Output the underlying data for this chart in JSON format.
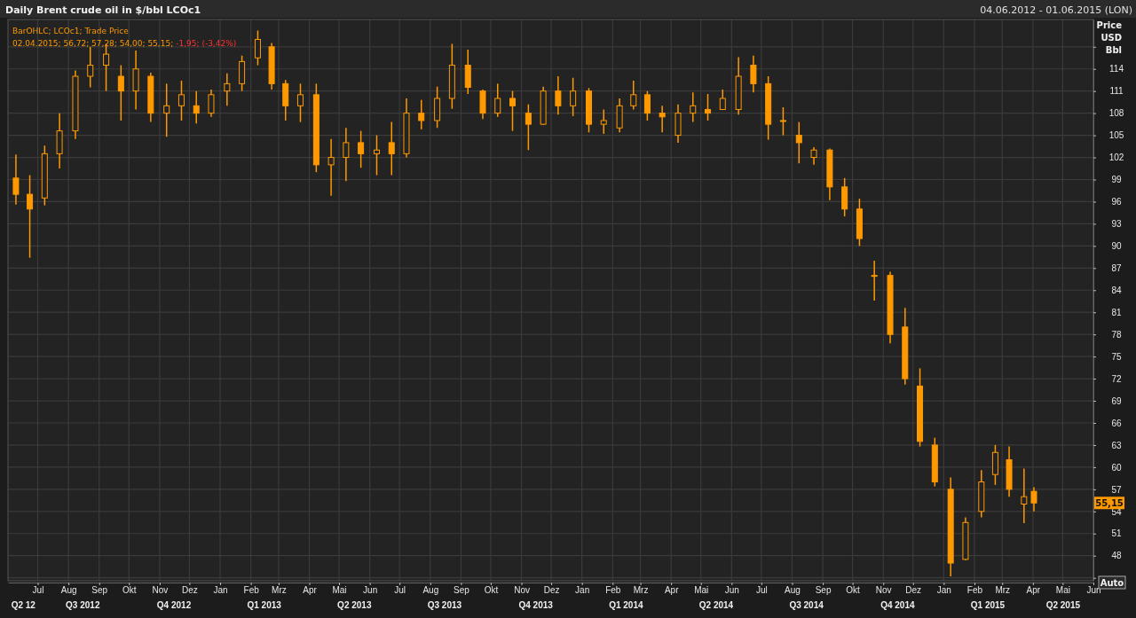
{
  "chart_data": {
    "type": "candlestick",
    "title": "Daily Brent crude oil in $/bbl LCOc1",
    "subtitle": "04.06.2012 - 01.06.2015 (LON)",
    "ylabel": "Price USD Bbl",
    "x": [
      "2012-06-09",
      "2012-06-23",
      "2012-07-08",
      "2012-07-23",
      "2012-08-08",
      "2012-08-23",
      "2012-09-08",
      "2012-09-23",
      "2012-10-08",
      "2012-10-23",
      "2012-11-08",
      "2012-11-23",
      "2012-12-08",
      "2012-12-23",
      "2013-01-08",
      "2013-01-23",
      "2013-02-08",
      "2013-02-22",
      "2013-03-08",
      "2013-03-23",
      "2013-04-08",
      "2013-04-23",
      "2013-05-08",
      "2013-05-23",
      "2013-06-08",
      "2013-06-23",
      "2013-07-08",
      "2013-07-23",
      "2013-08-08",
      "2013-08-23",
      "2013-09-08",
      "2013-09-23",
      "2013-10-08",
      "2013-10-23",
      "2013-11-08",
      "2013-11-23",
      "2013-12-08",
      "2013-12-23",
      "2014-01-08",
      "2014-01-23",
      "2014-02-08",
      "2014-02-22",
      "2014-03-08",
      "2014-03-23",
      "2014-04-08",
      "2014-04-23",
      "2014-05-08",
      "2014-05-23",
      "2014-06-08",
      "2014-06-23",
      "2014-07-08",
      "2014-07-23",
      "2014-08-08",
      "2014-08-23",
      "2014-09-08",
      "2014-09-23",
      "2014-10-08",
      "2014-10-23",
      "2014-11-08",
      "2014-11-23",
      "2014-12-08",
      "2014-12-23",
      "2015-01-08",
      "2015-01-23",
      "2015-02-08",
      "2015-02-22",
      "2015-03-08",
      "2015-03-23",
      "2015-04-02"
    ],
    "ohlc": [
      [
        99.2,
        102.4,
        95.6,
        97
      ],
      [
        97,
        99.6,
        88.4,
        95
      ],
      [
        96.5,
        103.6,
        95.5,
        102.5
      ],
      [
        102.5,
        108,
        100.5,
        105.6
      ],
      [
        105.6,
        113.8,
        104.5,
        113
      ],
      [
        113,
        117,
        111.5,
        114.5
      ],
      [
        114.5,
        117.4,
        111,
        116
      ],
      [
        113,
        114.5,
        107,
        111
      ],
      [
        111,
        116.5,
        108.5,
        114
      ],
      [
        113,
        113.5,
        106.8,
        108
      ],
      [
        108,
        112,
        104.8,
        109
      ],
      [
        109,
        112.4,
        107,
        110.5
      ],
      [
        109,
        111,
        106.6,
        108
      ],
      [
        108,
        111.2,
        107.5,
        110.5
      ],
      [
        111,
        113.4,
        109,
        112
      ],
      [
        112,
        115.8,
        111,
        115
      ],
      [
        115.5,
        119.2,
        114.5,
        118
      ],
      [
        117,
        117.5,
        111.2,
        112
      ],
      [
        112,
        112.5,
        107,
        109
      ],
      [
        109,
        112,
        106.8,
        110.5
      ],
      [
        110.5,
        112,
        100,
        101
      ],
      [
        101,
        104.5,
        96.8,
        102
      ],
      [
        102,
        106,
        98.8,
        104
      ],
      [
        104,
        105.6,
        100.6,
        102.5
      ],
      [
        102.5,
        105,
        99.6,
        103
      ],
      [
        104,
        106.8,
        99.6,
        102.5
      ],
      [
        102.5,
        110,
        102,
        108
      ],
      [
        108,
        109.8,
        105.8,
        107
      ],
      [
        107,
        111.6,
        106,
        110
      ],
      [
        110,
        117.4,
        108.6,
        114.5
      ],
      [
        114.5,
        116.6,
        110.6,
        111.5
      ],
      [
        111,
        111.2,
        107.2,
        108
      ],
      [
        108,
        112,
        107.5,
        110
      ],
      [
        110,
        111,
        105.6,
        109
      ],
      [
        108,
        109.2,
        103,
        106.5
      ],
      [
        106.5,
        111.6,
        106.4,
        111
      ],
      [
        111,
        113,
        107.8,
        109
      ],
      [
        109,
        112.8,
        107.6,
        111
      ],
      [
        111,
        111.4,
        105.4,
        106.5
      ],
      [
        106.5,
        108.5,
        105.2,
        107
      ],
      [
        106,
        110,
        105.4,
        109
      ],
      [
        109,
        112.4,
        108.5,
        110.5
      ],
      [
        110.5,
        111,
        107,
        108
      ],
      [
        108,
        109,
        105.4,
        107.5
      ],
      [
        105,
        109.2,
        104,
        108
      ],
      [
        108,
        110.8,
        106.8,
        109
      ],
      [
        108.5,
        110.6,
        107,
        108
      ],
      [
        108.5,
        111.2,
        108.5,
        110
      ],
      [
        108.5,
        115.6,
        107.8,
        113
      ],
      [
        114.5,
        115.8,
        110.8,
        112
      ],
      [
        112,
        113,
        104.4,
        106.5
      ],
      [
        107,
        108.8,
        105,
        107
      ],
      [
        105,
        106.8,
        101.2,
        104
      ],
      [
        102,
        103.4,
        101,
        103
      ],
      [
        103,
        103.2,
        96.2,
        98
      ],
      [
        98,
        99.2,
        94,
        95
      ],
      [
        95,
        96.4,
        90,
        91
      ],
      [
        86,
        88,
        82.6,
        86
      ],
      [
        86,
        86.5,
        76.8,
        78
      ],
      [
        79,
        81.6,
        71.2,
        72
      ],
      [
        71,
        73.4,
        62.8,
        63.5
      ],
      [
        63,
        64,
        57.4,
        58
      ],
      [
        57,
        58.6,
        45.2,
        47
      ],
      [
        47.5,
        53.2,
        47.4,
        52.5
      ],
      [
        54,
        59.6,
        53.2,
        58
      ],
      [
        59,
        63,
        57.6,
        62
      ],
      [
        61,
        62.8,
        56,
        57
      ],
      [
        55,
        59.8,
        52.4,
        56
      ],
      [
        56.72,
        57.28,
        54,
        55.15
      ]
    ],
    "color": "#ff9900",
    "xlim": [
      "2012-06-01",
      "2015-06-01"
    ],
    "xticks": [
      {
        "value": "2012-07-01",
        "label": "Jul"
      },
      {
        "value": "2012-08-01",
        "label": "Aug"
      },
      {
        "value": "2012-09-01",
        "label": "Sep"
      },
      {
        "value": "2012-10-01",
        "label": "Okt"
      },
      {
        "value": "2012-11-01",
        "label": "Nov"
      },
      {
        "value": "2012-12-01",
        "label": "Dez"
      },
      {
        "value": "2013-01-01",
        "label": "Jan"
      },
      {
        "value": "2013-02-01",
        "label": "Feb"
      },
      {
        "value": "2013-03-01",
        "label": "Mrz"
      },
      {
        "value": "2013-04-01",
        "label": "Apr"
      },
      {
        "value": "2013-05-01",
        "label": "Mai"
      },
      {
        "value": "2013-06-01",
        "label": "Jun"
      },
      {
        "value": "2013-07-01",
        "label": "Jul"
      },
      {
        "value": "2013-08-01",
        "label": "Aug"
      },
      {
        "value": "2013-09-01",
        "label": "Sep"
      },
      {
        "value": "2013-10-01",
        "label": "Okt"
      },
      {
        "value": "2013-11-01",
        "label": "Nov"
      },
      {
        "value": "2013-12-01",
        "label": "Dez"
      },
      {
        "value": "2014-01-01",
        "label": "Jan"
      },
      {
        "value": "2014-02-01",
        "label": "Feb"
      },
      {
        "value": "2014-03-01",
        "label": "Mrz"
      },
      {
        "value": "2014-04-01",
        "label": "Apr"
      },
      {
        "value": "2014-05-01",
        "label": "Mai"
      },
      {
        "value": "2014-06-01",
        "label": "Jun"
      },
      {
        "value": "2014-07-01",
        "label": "Jul"
      },
      {
        "value": "2014-08-01",
        "label": "Aug"
      },
      {
        "value": "2014-09-01",
        "label": "Sep"
      },
      {
        "value": "2014-10-01",
        "label": "Okt"
      },
      {
        "value": "2014-11-01",
        "label": "Nov"
      },
      {
        "value": "2014-12-01",
        "label": "Dez"
      },
      {
        "value": "2015-01-01",
        "label": "Jan"
      },
      {
        "value": "2015-02-01",
        "label": "Feb"
      },
      {
        "value": "2015-03-01",
        "label": "Mrz"
      },
      {
        "value": "2015-04-01",
        "label": "Apr"
      },
      {
        "value": "2015-05-01",
        "label": "Mai"
      },
      {
        "value": "2015-06-01",
        "label": "Jun"
      }
    ],
    "x2lim": [
      "2012-06-01",
      "2015-06-01"
    ],
    "x2ticks": [
      {
        "value": "2012-06-16",
        "label": "Q2 12"
      },
      {
        "value": "2012-08-15",
        "label": "Q3 2012"
      },
      {
        "value": "2012-11-15",
        "label": "Q4 2012"
      },
      {
        "value": "2013-02-14",
        "label": "Q1 2013"
      },
      {
        "value": "2013-05-16",
        "label": "Q2 2013"
      },
      {
        "value": "2013-08-15",
        "label": "Q3 2013"
      },
      {
        "value": "2013-11-15",
        "label": "Q4 2013"
      },
      {
        "value": "2014-02-14",
        "label": "Q1 2014"
      },
      {
        "value": "2014-05-16",
        "label": "Q2 2014"
      },
      {
        "value": "2014-08-15",
        "label": "Q3 2014"
      },
      {
        "value": "2014-11-15",
        "label": "Q4 2014"
      },
      {
        "value": "2015-02-14",
        "label": "Q1 2015"
      },
      {
        "value": "2015-05-01",
        "label": "Q2 2015"
      }
    ],
    "ylim": [
      44.6,
      120.7
    ],
    "yticks": [
      {
        "value": 45,
        "label": null
      },
      48,
      51,
      54,
      57,
      60,
      63,
      66,
      69,
      72,
      75,
      78,
      81,
      84,
      87,
      90,
      93,
      96,
      99,
      102,
      105,
      108,
      111,
      114,
      {
        "value": 117,
        "label": null
      }
    ],
    "grid": true,
    "annotations": [
      "BarOHLC; LCOc1; Trade Price",
      "02.04.2015; 56,72; 57,28; 54,00; 55,15;",
      "-1,95; (-3,42%)",
      "Auto",
      {
        "text": "55,15",
        "y": 55.15
      }
    ]
  }
}
